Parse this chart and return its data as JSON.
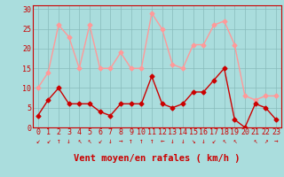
{
  "x": [
    0,
    1,
    2,
    3,
    4,
    5,
    6,
    7,
    8,
    9,
    10,
    11,
    12,
    13,
    14,
    15,
    16,
    17,
    18,
    19,
    20,
    21,
    22,
    23
  ],
  "mean_wind": [
    3,
    7,
    10,
    6,
    6,
    6,
    4,
    3,
    6,
    6,
    6,
    13,
    6,
    5,
    6,
    9,
    9,
    12,
    15,
    2,
    0,
    6,
    5,
    2
  ],
  "gust_wind": [
    10,
    14,
    26,
    23,
    15,
    26,
    15,
    15,
    19,
    15,
    15,
    29,
    25,
    16,
    15,
    21,
    21,
    26,
    27,
    21,
    8,
    7,
    8,
    8
  ],
  "mean_color": "#cc0000",
  "gust_color": "#ff9999",
  "bg_color": "#aadddd",
  "grid_color": "#88bbbb",
  "axis_color": "#cc0000",
  "xlabel": "Vent moyen/en rafales ( km/h )",
  "xlabel_fontsize": 7.5,
  "ylabel_ticks": [
    0,
    5,
    10,
    15,
    20,
    25,
    30
  ],
  "xlim": [
    -0.5,
    23.5
  ],
  "ylim": [
    0,
    31
  ],
  "tick_fontsize": 6,
  "marker_size": 2.5,
  "line_width": 1.0,
  "arrows": [
    "↙",
    "↙",
    "↑",
    "↓",
    "↖",
    "↖",
    "↙",
    "↓",
    "→",
    "↑",
    "↑",
    "↑",
    "←",
    "↓",
    "↓",
    "↘",
    "↓",
    "↙",
    "↖",
    "↖",
    " ",
    "↖",
    "↗",
    "→"
  ]
}
